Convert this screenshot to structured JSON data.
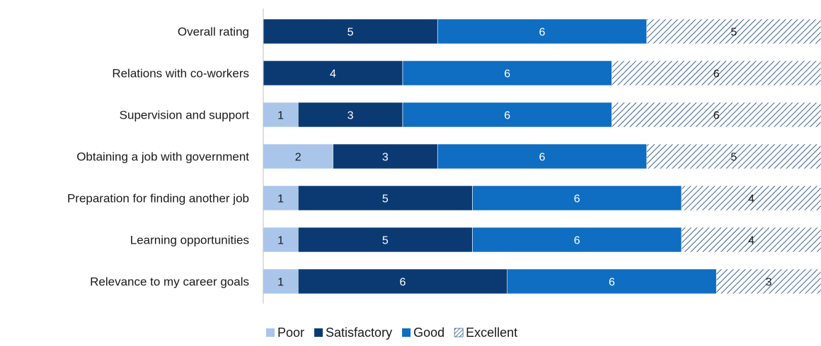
{
  "chart_data": {
    "type": "bar",
    "orientation": "horizontal",
    "stacked": true,
    "title": "",
    "xlabel": "",
    "ylabel": "",
    "categories": [
      "Overall rating",
      "Relations with co-workers",
      "Supervision and support",
      "Obtaining a job with government",
      "Preparation for finding another job",
      "Learning opportunities",
      "Relevance to my career goals"
    ],
    "series": [
      {
        "name": "Poor",
        "color": "#a9c5ea",
        "values": [
          0,
          0,
          1,
          2,
          1,
          1,
          1
        ],
        "label_color": "#1a1a1a"
      },
      {
        "name": "Satisfactory",
        "color": "#0b3a73",
        "values": [
          5,
          4,
          3,
          3,
          5,
          5,
          6
        ],
        "label_color": "#ffffff"
      },
      {
        "name": "Good",
        "color": "#0f6dc2",
        "values": [
          6,
          6,
          6,
          6,
          6,
          6,
          6
        ],
        "label_color": "#ffffff"
      },
      {
        "name": "Excellent",
        "color": "#ffffff",
        "pattern": "diagonal-hatch",
        "pattern_color": "#0b3a73",
        "values": [
          5,
          6,
          6,
          5,
          4,
          4,
          3
        ],
        "label_color": "#1a1a1a"
      }
    ],
    "xlim": [
      0,
      16
    ],
    "grid": false,
    "data_labels": true,
    "legend": {
      "position": "bottom"
    }
  }
}
